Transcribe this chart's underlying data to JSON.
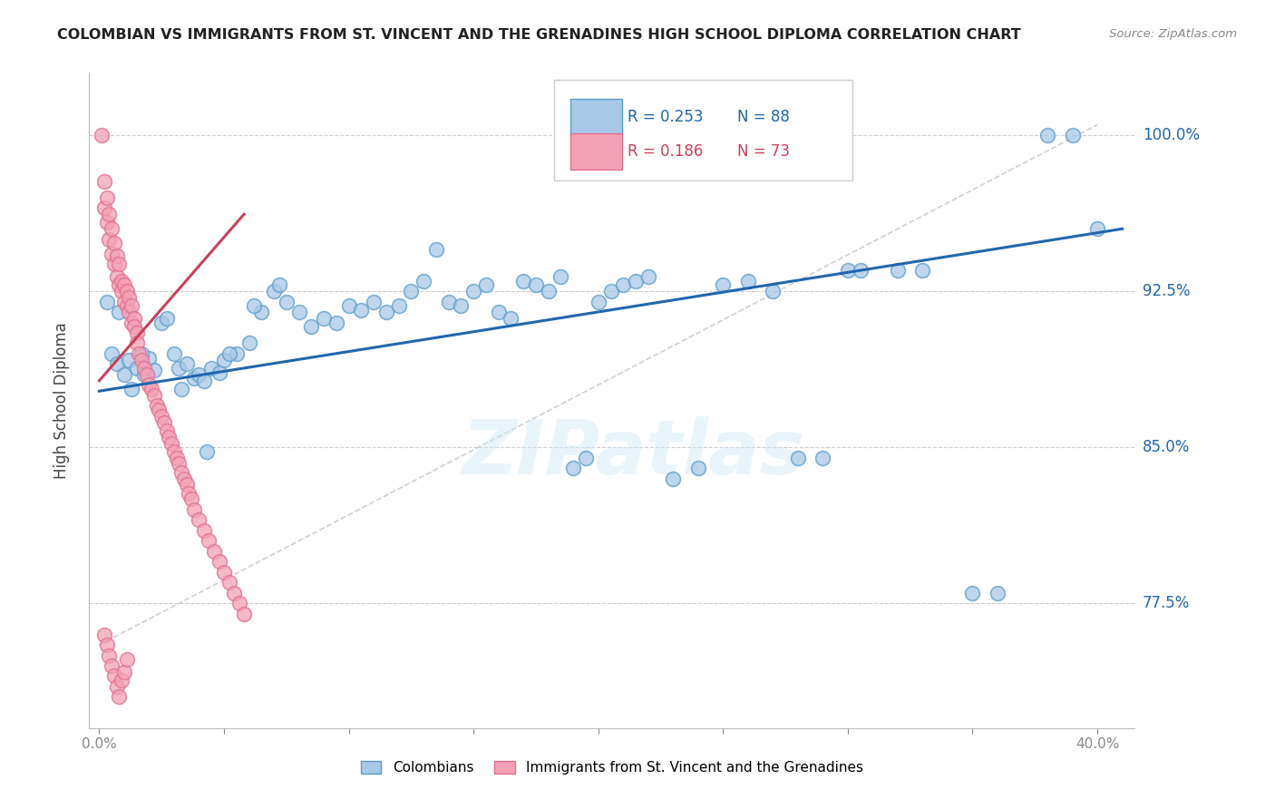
{
  "title": "COLOMBIAN VS IMMIGRANTS FROM ST. VINCENT AND THE GRENADINES HIGH SCHOOL DIPLOMA CORRELATION CHART",
  "source": "Source: ZipAtlas.com",
  "ylabel": "High School Diploma",
  "ytick_labels": [
    "100.0%",
    "92.5%",
    "85.0%",
    "77.5%"
  ],
  "ytick_values": [
    1.0,
    0.925,
    0.85,
    0.775
  ],
  "ylim": [
    0.715,
    1.03
  ],
  "xlim": [
    -0.004,
    0.415
  ],
  "blue_R": "0.253",
  "blue_N": "88",
  "pink_R": "0.186",
  "pink_N": "73",
  "blue_color": "#a8c8e8",
  "pink_color": "#f4a0b5",
  "trend_blue": "#2166ac",
  "trend_pink": "#c9405a",
  "watermark": "ZIPatlas",
  "legend_label_blue": "Colombians",
  "legend_label_pink": "Immigrants from St. Vincent and the Grenadines",
  "blue_trend_x": [
    0.0,
    0.41
  ],
  "blue_trend_y": [
    0.877,
    0.955
  ],
  "pink_trend_x": [
    0.0,
    0.058
  ],
  "pink_trend_y": [
    0.882,
    0.962
  ]
}
